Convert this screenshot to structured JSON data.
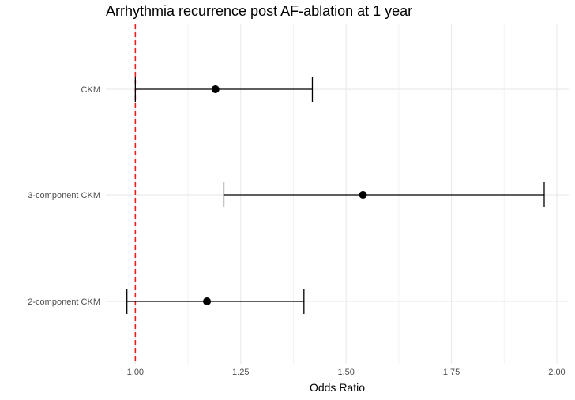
{
  "chart_data": {
    "type": "forest",
    "title": "Arrhythmia recurrence post AF-ablation at 1 year",
    "xlabel": "Odds Ratio",
    "ylabel": "",
    "xlim": [
      0.93,
      2.03
    ],
    "x_ticks": [
      1.0,
      1.25,
      1.5,
      1.75,
      2.0
    ],
    "x_tick_labels": [
      "1.00",
      "1.25",
      "1.50",
      "1.75",
      "2.00"
    ],
    "reference_line": {
      "x": 1.0,
      "color": "#e8211f",
      "style": "dashed"
    },
    "rows": [
      {
        "label": "CKM",
        "estimate": 1.19,
        "lower": 1.0,
        "upper": 1.42
      },
      {
        "label": "3-component CKM",
        "estimate": 1.54,
        "lower": 1.21,
        "upper": 1.97
      },
      {
        "label": "2-component CKM",
        "estimate": 1.17,
        "lower": 0.98,
        "upper": 1.4
      }
    ],
    "grid": true,
    "legend": "none"
  }
}
